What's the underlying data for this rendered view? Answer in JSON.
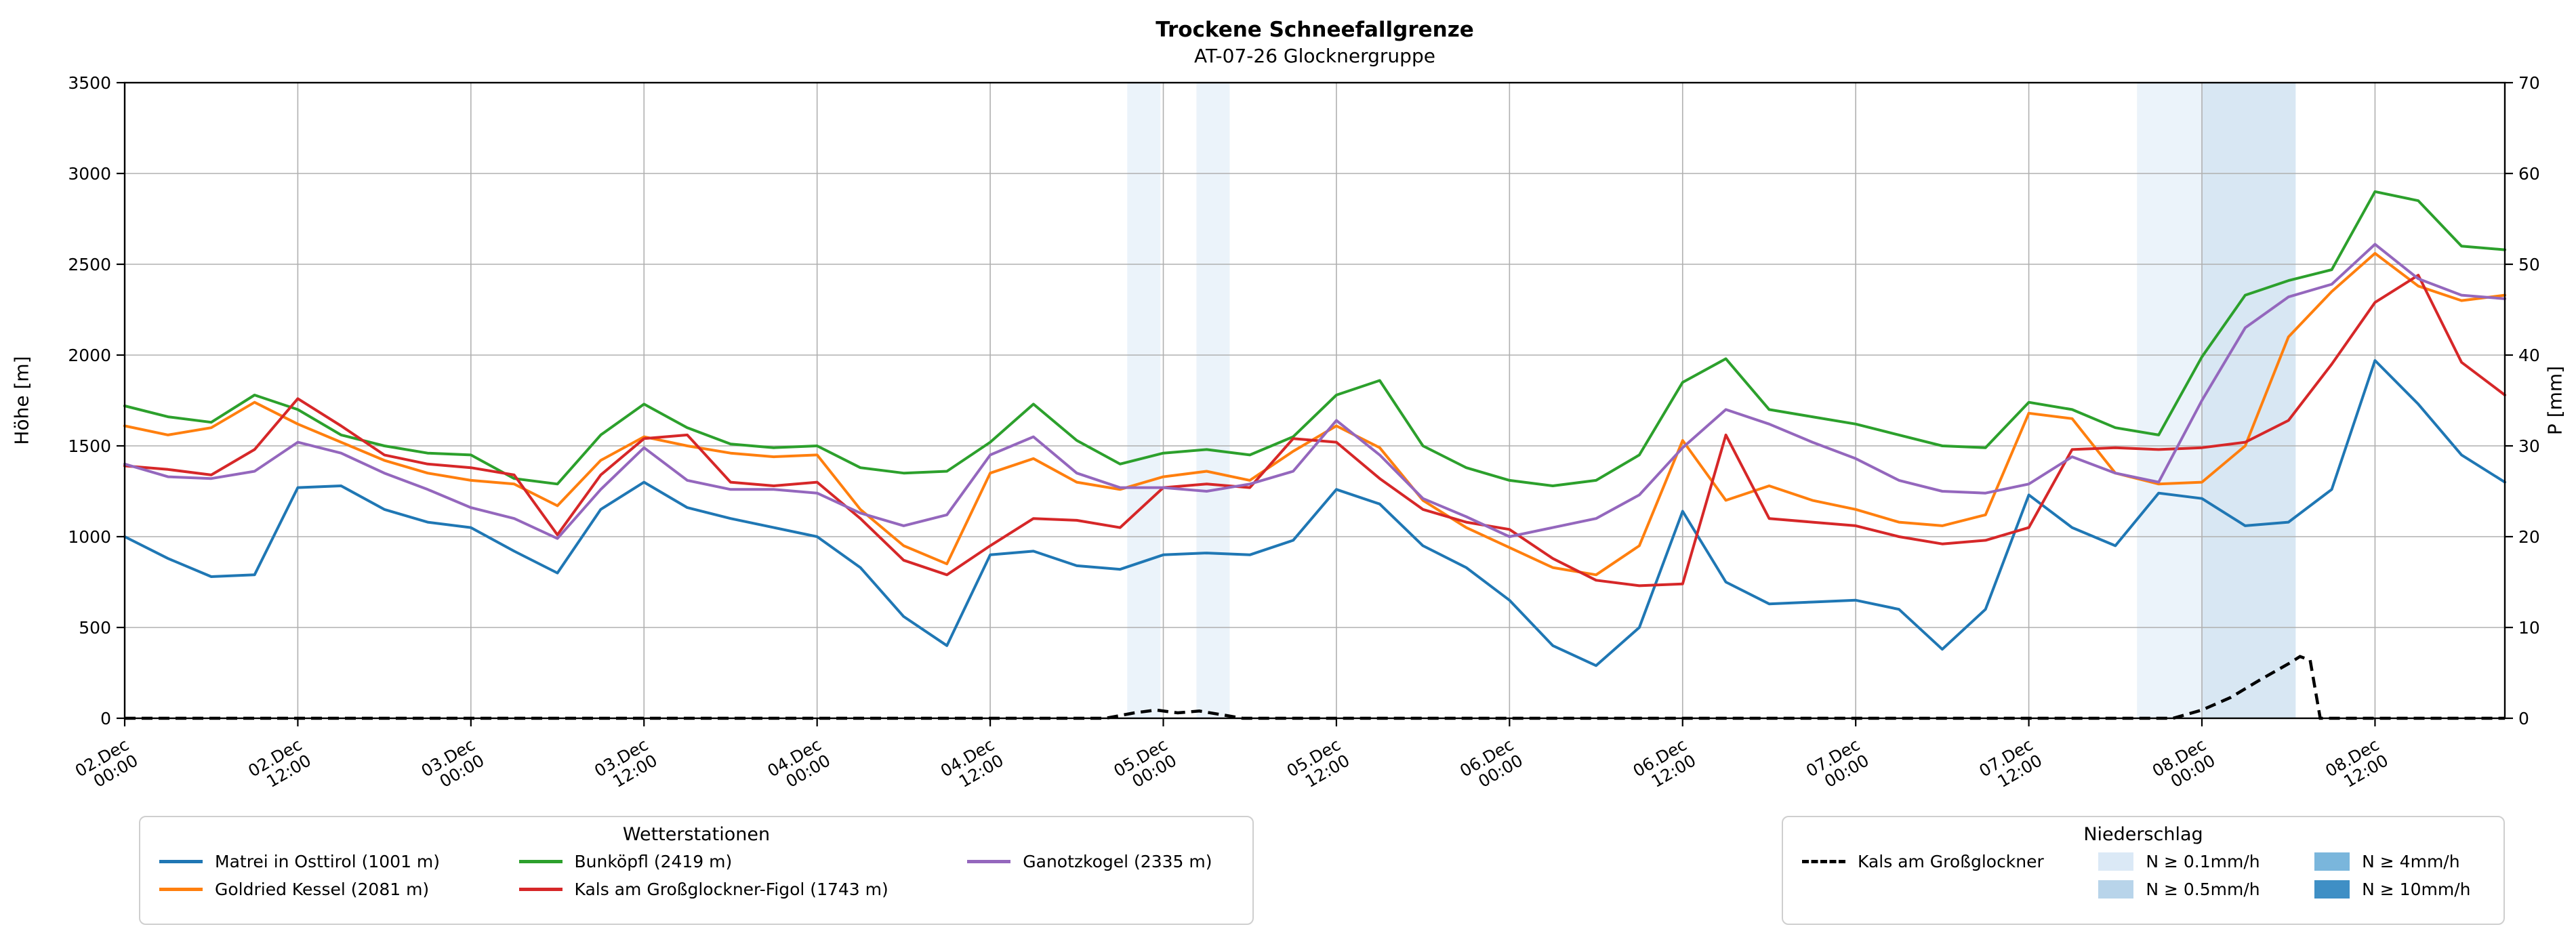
{
  "title": "Trockene Schneefallgrenze",
  "subtitle": "AT-07-26 Glocknergruppe",
  "axes": {
    "y_left_label": "Höhe [m]",
    "y_right_label": "P [mm]",
    "y_left_range": [
      0,
      3500
    ],
    "y_left_ticks": [
      0,
      500,
      1000,
      1500,
      2000,
      2500,
      3000,
      3500
    ],
    "y_right_range": [
      0,
      70
    ],
    "y_right_ticks": [
      0,
      10,
      20,
      30,
      40,
      50,
      60,
      70
    ],
    "x_range_hours": [
      0,
      165
    ],
    "x_ticks": [
      {
        "h": 0,
        "date": "02.Dec",
        "time": "00:00"
      },
      {
        "h": 12,
        "date": "02.Dec",
        "time": "12:00"
      },
      {
        "h": 24,
        "date": "03.Dec",
        "time": "00:00"
      },
      {
        "h": 36,
        "date": "03.Dec",
        "time": "12:00"
      },
      {
        "h": 48,
        "date": "04.Dec",
        "time": "00:00"
      },
      {
        "h": 60,
        "date": "04.Dec",
        "time": "12:00"
      },
      {
        "h": 72,
        "date": "05.Dec",
        "time": "00:00"
      },
      {
        "h": 84,
        "date": "05.Dec",
        "time": "12:00"
      },
      {
        "h": 96,
        "date": "06.Dec",
        "time": "00:00"
      },
      {
        "h": 108,
        "date": "06.Dec",
        "time": "12:00"
      },
      {
        "h": 120,
        "date": "07.Dec",
        "time": "00:00"
      },
      {
        "h": 132,
        "date": "07.Dec",
        "time": "12:00"
      },
      {
        "h": 144,
        "date": "08.Dec",
        "time": "00:00"
      },
      {
        "h": 156,
        "date": "08.Dec",
        "time": "12:00"
      }
    ]
  },
  "chart_data": {
    "type": "line",
    "title": "Trockene Schneefallgrenze",
    "subtitle": "AT-07-26 Glocknergruppe",
    "xlabel": "",
    "ylabel_left": "Höhe [m]",
    "ylabel_right": "P [mm]",
    "grid": true,
    "x_hours": [
      0,
      3,
      6,
      9,
      12,
      15,
      18,
      21,
      24,
      27,
      30,
      33,
      36,
      39,
      42,
      45,
      48,
      51,
      54,
      57,
      60,
      63,
      66,
      69,
      72,
      75,
      78,
      81,
      84,
      87,
      90,
      93,
      96,
      99,
      102,
      105,
      108,
      111,
      114,
      117,
      120,
      123,
      126,
      129,
      132,
      135,
      138,
      141,
      144,
      147,
      150,
      153,
      156,
      159,
      162,
      165
    ],
    "series": [
      {
        "name": "Matrei in Osttirol (1001 m)",
        "color": "#1f77b4",
        "values": [
          1000,
          880,
          780,
          790,
          1270,
          1280,
          1150,
          1080,
          1050,
          920,
          800,
          1150,
          1300,
          1160,
          1100,
          1050,
          1000,
          830,
          560,
          400,
          900,
          920,
          840,
          820,
          900,
          910,
          900,
          980,
          1260,
          1180,
          950,
          830,
          650,
          400,
          290,
          500,
          1140,
          750,
          630,
          640,
          650,
          600,
          380,
          600,
          1230,
          1050,
          950,
          1240,
          1210,
          1060,
          1080,
          1260,
          1970,
          1730,
          1450,
          1300
        ]
      },
      {
        "name": "Goldried Kessel (2081 m)",
        "color": "#ff7f0e",
        "values": [
          1610,
          1560,
          1600,
          1740,
          1620,
          1520,
          1420,
          1350,
          1310,
          1290,
          1170,
          1420,
          1550,
          1500,
          1460,
          1440,
          1450,
          1150,
          950,
          850,
          1350,
          1430,
          1300,
          1260,
          1330,
          1360,
          1310,
          1470,
          1610,
          1490,
          1200,
          1050,
          940,
          830,
          790,
          950,
          1530,
          1200,
          1280,
          1200,
          1150,
          1080,
          1060,
          1120,
          1680,
          1650,
          1350,
          1290,
          1300,
          1500,
          2100,
          2350,
          2560,
          2380,
          2300,
          2330
        ]
      },
      {
        "name": "Bunköpfl (2419 m)",
        "color": "#2ca02c",
        "values": [
          1720,
          1660,
          1630,
          1780,
          1700,
          1560,
          1500,
          1460,
          1450,
          1320,
          1290,
          1560,
          1730,
          1600,
          1510,
          1490,
          1500,
          1380,
          1350,
          1360,
          1520,
          1730,
          1530,
          1400,
          1460,
          1480,
          1450,
          1550,
          1780,
          1860,
          1500,
          1380,
          1310,
          1280,
          1310,
          1450,
          1850,
          1980,
          1700,
          1660,
          1620,
          1560,
          1500,
          1490,
          1740,
          1700,
          1600,
          1560,
          1990,
          2330,
          2410,
          2470,
          2900,
          2850,
          2600,
          2580
        ]
      },
      {
        "name": "Kals am Großglockner-Figol (1743 m)",
        "color": "#d62728",
        "values": [
          1390,
          1370,
          1340,
          1480,
          1760,
          1610,
          1450,
          1400,
          1380,
          1340,
          1010,
          1340,
          1540,
          1560,
          1300,
          1280,
          1300,
          1100,
          870,
          790,
          950,
          1100,
          1090,
          1050,
          1270,
          1290,
          1270,
          1540,
          1520,
          1320,
          1150,
          1080,
          1040,
          880,
          760,
          730,
          740,
          1560,
          1100,
          1080,
          1060,
          1000,
          960,
          980,
          1050,
          1480,
          1490,
          1480,
          1490,
          1520,
          1640,
          1950,
          2290,
          2440,
          1960,
          1780
        ]
      },
      {
        "name": "Ganotzkogel (2335 m)",
        "color": "#9467bd",
        "values": [
          1400,
          1330,
          1320,
          1360,
          1520,
          1460,
          1350,
          1260,
          1160,
          1100,
          990,
          1260,
          1490,
          1310,
          1260,
          1260,
          1240,
          1130,
          1060,
          1120,
          1450,
          1550,
          1350,
          1270,
          1270,
          1250,
          1290,
          1360,
          1640,
          1450,
          1210,
          1110,
          1000,
          1050,
          1100,
          1230,
          1490,
          1700,
          1620,
          1520,
          1430,
          1310,
          1250,
          1240,
          1290,
          1440,
          1350,
          1300,
          1750,
          2150,
          2320,
          2390,
          2610,
          2420,
          2330,
          2310
        ]
      }
    ],
    "precip_line": {
      "name": "Kals am Großglockner",
      "color": "#000000",
      "dashed": true,
      "x_hours": [
        0,
        68,
        70,
        71.5,
        73,
        74.5,
        76,
        77.5,
        142,
        144,
        146,
        148,
        150,
        150.8,
        151.5,
        152.2,
        165
      ],
      "values_mm": [
        0,
        0,
        0.6,
        0.9,
        0.6,
        0.8,
        0.4,
        0,
        0,
        0.9,
        2.3,
        4.2,
        6.0,
        6.8,
        6.4,
        0,
        0
      ]
    },
    "precip_bands": [
      {
        "start_h": 69.5,
        "end_h": 71.8,
        "level": "N ≥ 0.1mm/h"
      },
      {
        "start_h": 74.3,
        "end_h": 76.6,
        "level": "N ≥ 0.1mm/h"
      },
      {
        "start_h": 139.5,
        "end_h": 144,
        "level": "N ≥ 0.1mm/h"
      },
      {
        "start_h": 144,
        "end_h": 150.5,
        "level": "N ≥ 0.5mm/h"
      }
    ],
    "band_levels": [
      {
        "label": "N ≥ 0.1mm/h",
        "color": "#dbe9f6"
      },
      {
        "label": "N ≥ 0.5mm/h",
        "color": "#b8d4ea"
      },
      {
        "label": "N ≥ 4mm/h",
        "color": "#7ab6dc"
      },
      {
        "label": "N ≥ 10mm/h",
        "color": "#3f8fc5"
      }
    ]
  },
  "legends": {
    "stations_title": "Wetterstationen",
    "precip_title": "Niederschlag"
  },
  "style": {
    "grid_color": "#b0b0b0",
    "spine_color": "#000000"
  }
}
